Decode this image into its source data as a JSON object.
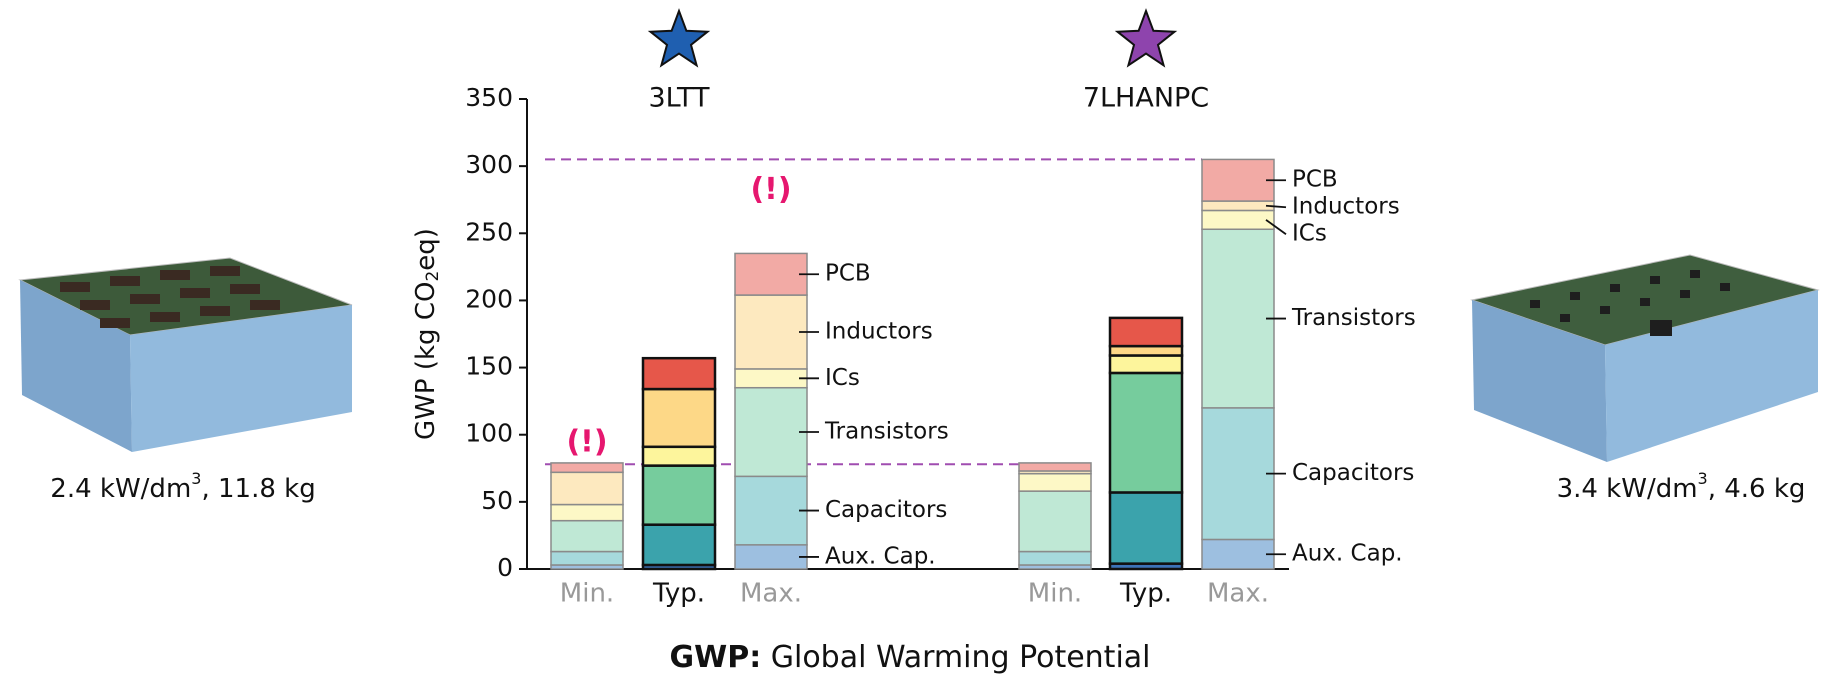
{
  "chart_data": {
    "type": "stacked_bar",
    "ylabel_parts": [
      "GWP (kg CO",
      "2",
      "eq)"
    ],
    "groups": [
      "3LTT",
      "7LHANPC"
    ],
    "group_colors": [
      "#1f5fb0",
      "#8e44ad"
    ],
    "categories": [
      "Min.",
      "Typ.",
      "Max.",
      "Min.",
      "Typ.",
      "Max."
    ],
    "category_label_colors": [
      "#999999",
      "#111111",
      "#999999",
      "#999999",
      "#111111",
      "#999999"
    ],
    "outline_colors": [
      "#8a8a8a",
      "#111111",
      "#8a8a8a",
      "#8a8a8a",
      "#111111",
      "#8a8a8a"
    ],
    "labeled_categories": [
      2,
      5
    ],
    "series": [
      {
        "name": "Aux. Cap.",
        "values": [
          3,
          3,
          18,
          3,
          4,
          22
        ],
        "colors": [
          "#9dbfe0",
          "#3d73b8",
          "#9dbfe0",
          "#9dbfe0",
          "#3d73b8",
          "#9dbfe0"
        ]
      },
      {
        "name": "Capacitors",
        "values": [
          10,
          30,
          51,
          10,
          53,
          98
        ],
        "colors": [
          "#a6d9dc",
          "#3ba3ac",
          "#a6d9dc",
          "#a6d9dc",
          "#3ba3ac",
          "#a6d9dc"
        ]
      },
      {
        "name": "Transistors",
        "values": [
          23,
          44,
          66,
          45,
          89,
          133
        ],
        "colors": [
          "#bfe8d5",
          "#76cc9d",
          "#bfe8d5",
          "#bfe8d5",
          "#76cc9d",
          "#bfe8d5"
        ]
      },
      {
        "name": "ICs",
        "values": [
          12,
          14,
          14,
          13,
          13,
          14
        ],
        "colors": [
          "#fdf8c6",
          "#fdf59c",
          "#fdf8c6",
          "#fdf8c6",
          "#fdf59c",
          "#fdf8c6"
        ]
      },
      {
        "name": "Inductors",
        "values": [
          24,
          43,
          55,
          2,
          7,
          7
        ],
        "colors": [
          "#fde9bf",
          "#fdd887",
          "#fde9bf",
          "#fde9bf",
          "#fdd887",
          "#fde9bf"
        ]
      },
      {
        "name": "PCB",
        "values": [
          7,
          23,
          31,
          6,
          21,
          31
        ],
        "colors": [
          "#f2aaa5",
          "#e6574a",
          "#f2aaa5",
          "#f2aaa5",
          "#e6574a",
          "#f2aaa5"
        ]
      }
    ],
    "ylim": [
      0,
      350
    ],
    "yticks": [
      0,
      50,
      100,
      150,
      200,
      250,
      300,
      350
    ],
    "reference_lines": [
      {
        "value": 305,
        "color": "#a04db0",
        "until_category": 5
      },
      {
        "value": 78,
        "color": "#a04db0",
        "until_category": 3
      }
    ],
    "annotations": [
      {
        "text": "(!)",
        "category": 0,
        "y": 94,
        "color": "#e6176f"
      },
      {
        "text": "(!)",
        "category": 2,
        "y": 282,
        "color": "#e6176f"
      }
    ]
  },
  "images": [
    {
      "caption_parts": [
        "2.4 kW/dm",
        "3",
        ", 11.8 kg"
      ]
    },
    {
      "caption_parts": [
        "3.4 kW/dm",
        "3",
        ", 4.6 kg"
      ]
    }
  ],
  "caption": {
    "term": "GWP:",
    "text": "Global Warming Potential"
  }
}
